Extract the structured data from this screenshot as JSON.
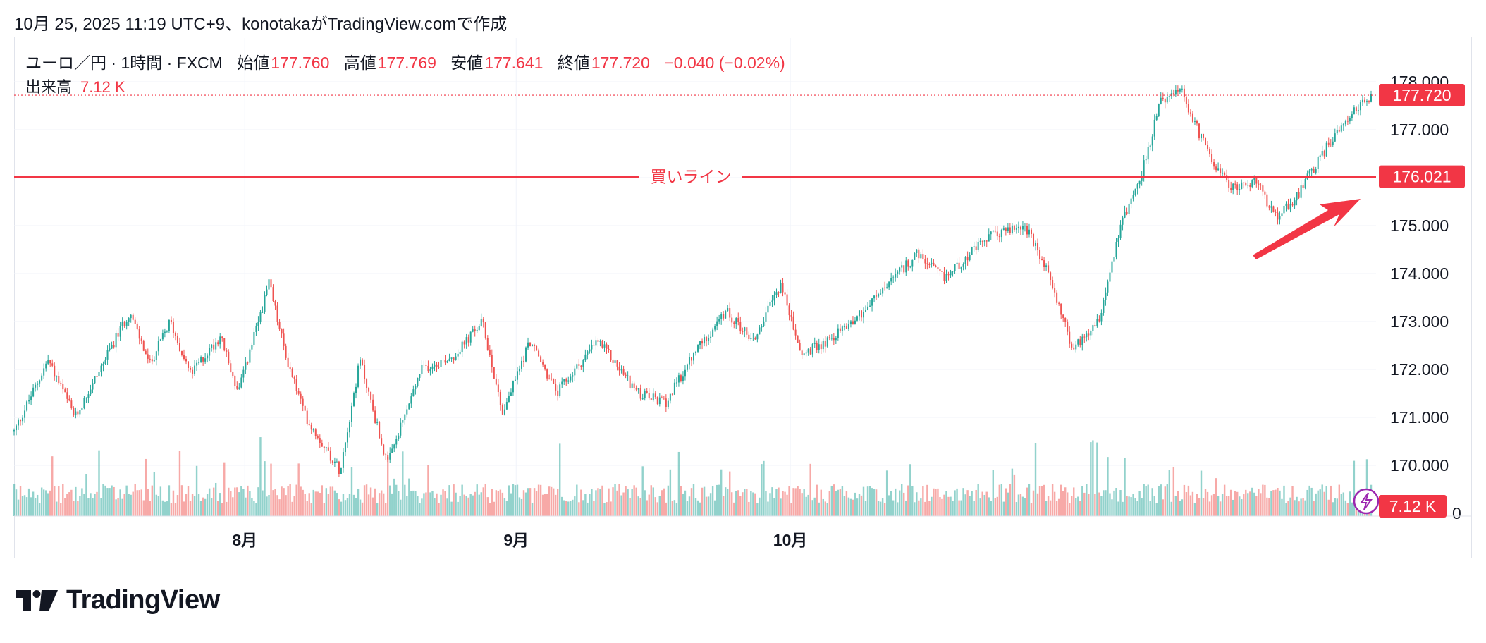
{
  "caption": "10月 25, 2025 11:19 UTC+9、konotakaがTradingView.comで作成",
  "legend": {
    "symbol": "ユーロ／円 · 1時間 · FXCM",
    "open_label": "始値",
    "open_value": "177.760",
    "high_label": "高値",
    "high_value": "177.769",
    "low_label": "安値",
    "low_value": "177.641",
    "close_label": "終値",
    "close_value": "177.720",
    "change": "−0.040 (−0.02%)",
    "volume_label": "出来高",
    "volume_value": "7.12 K"
  },
  "buy_line_label": "買いライン",
  "logo_text": "TradingView",
  "colors": {
    "up": "#26a69a",
    "down": "#ef5350",
    "line": "#f23645",
    "label_bg": "#f23645",
    "arrow": "#f23645"
  },
  "chart_data": {
    "type": "candlestick",
    "symbol": "ユーロ／円",
    "interval": "1時間",
    "source": "FXCM",
    "y_axis": {
      "ticks": [
        "170.000",
        "171.000",
        "172.000",
        "173.000",
        "174.000",
        "175.000",
        "176.000",
        "177.000",
        "178.000"
      ],
      "range": [
        169.1,
        178.9
      ]
    },
    "x_axis": {
      "ticks": [
        "8月",
        "9月",
        "10月"
      ]
    },
    "last_price": 177.72,
    "last_price_label": "177.720",
    "buy_line": 176.021,
    "buy_line_label_value": "176.021",
    "volume_last_label": "7.12 K",
    "volume_axis_label": "0",
    "price_path": [
      {
        "t": 0,
        "p": 170.7
      },
      {
        "t": 0.025,
        "p": 172.2
      },
      {
        "t": 0.045,
        "p": 171.0
      },
      {
        "t": 0.085,
        "p": 173.2
      },
      {
        "t": 0.1,
        "p": 172.1
      },
      {
        "t": 0.115,
        "p": 173.0
      },
      {
        "t": 0.13,
        "p": 171.9
      },
      {
        "t": 0.152,
        "p": 172.7
      },
      {
        "t": 0.165,
        "p": 171.5
      },
      {
        "t": 0.188,
        "p": 173.8
      },
      {
        "t": 0.2,
        "p": 172.3
      },
      {
        "t": 0.215,
        "p": 171.0
      },
      {
        "t": 0.24,
        "p": 169.9
      },
      {
        "t": 0.255,
        "p": 172.2
      },
      {
        "t": 0.275,
        "p": 170.0
      },
      {
        "t": 0.3,
        "p": 172.0
      },
      {
        "t": 0.325,
        "p": 172.3
      },
      {
        "t": 0.345,
        "p": 173.0
      },
      {
        "t": 0.36,
        "p": 171.1
      },
      {
        "t": 0.38,
        "p": 172.6
      },
      {
        "t": 0.4,
        "p": 171.5
      },
      {
        "t": 0.43,
        "p": 172.6
      },
      {
        "t": 0.46,
        "p": 171.5
      },
      {
        "t": 0.48,
        "p": 171.3
      },
      {
        "t": 0.505,
        "p": 172.5
      },
      {
        "t": 0.525,
        "p": 173.2
      },
      {
        "t": 0.545,
        "p": 172.6
      },
      {
        "t": 0.565,
        "p": 173.8
      },
      {
        "t": 0.58,
        "p": 172.3
      },
      {
        "t": 0.6,
        "p": 172.6
      },
      {
        "t": 0.625,
        "p": 173.2
      },
      {
        "t": 0.645,
        "p": 173.8
      },
      {
        "t": 0.665,
        "p": 174.4
      },
      {
        "t": 0.685,
        "p": 173.9
      },
      {
        "t": 0.7,
        "p": 174.3
      },
      {
        "t": 0.72,
        "p": 174.8
      },
      {
        "t": 0.745,
        "p": 175.0
      },
      {
        "t": 0.765,
        "p": 173.8
      },
      {
        "t": 0.78,
        "p": 172.4
      },
      {
        "t": 0.8,
        "p": 173.1
      },
      {
        "t": 0.815,
        "p": 175.0
      },
      {
        "t": 0.83,
        "p": 176.0
      },
      {
        "t": 0.845,
        "p": 177.6
      },
      {
        "t": 0.86,
        "p": 177.8
      },
      {
        "t": 0.875,
        "p": 176.8
      },
      {
        "t": 0.895,
        "p": 175.8
      },
      {
        "t": 0.915,
        "p": 175.9
      },
      {
        "t": 0.93,
        "p": 175.2
      },
      {
        "t": 0.945,
        "p": 175.6
      },
      {
        "t": 0.96,
        "p": 176.3
      },
      {
        "t": 0.98,
        "p": 177.2
      },
      {
        "t": 1.0,
        "p": 177.72
      }
    ]
  }
}
